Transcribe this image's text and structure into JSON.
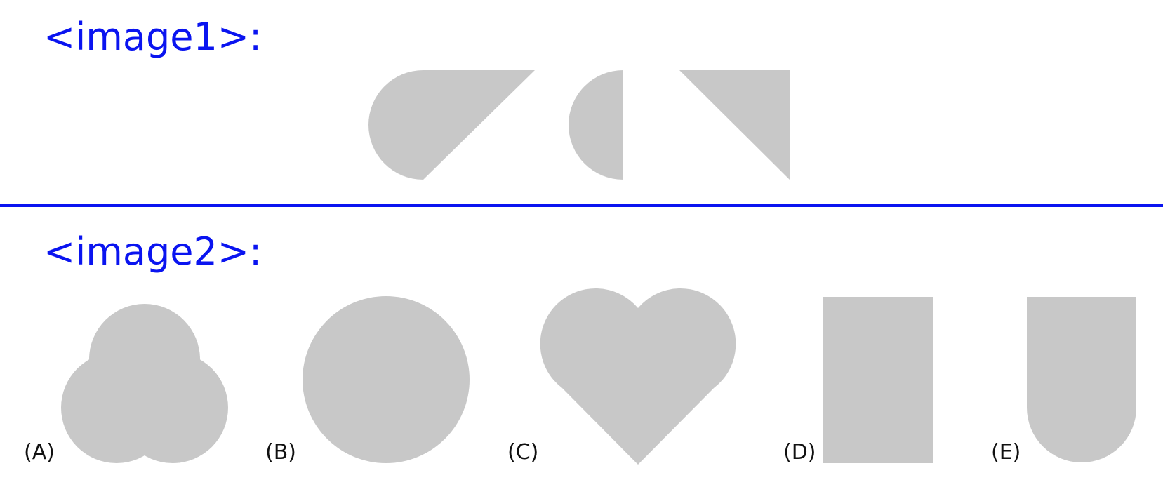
{
  "question": {
    "image1_label": "<image1>:",
    "image2_label": "<image2>:"
  },
  "options": [
    "(A)",
    "(B)",
    "(C)",
    "(D)",
    "(E)"
  ],
  "colors": {
    "label": "#0a14f0",
    "divider": "#0a14f0",
    "shape_fill": "#c8c8c8",
    "option_text": "#111111"
  }
}
